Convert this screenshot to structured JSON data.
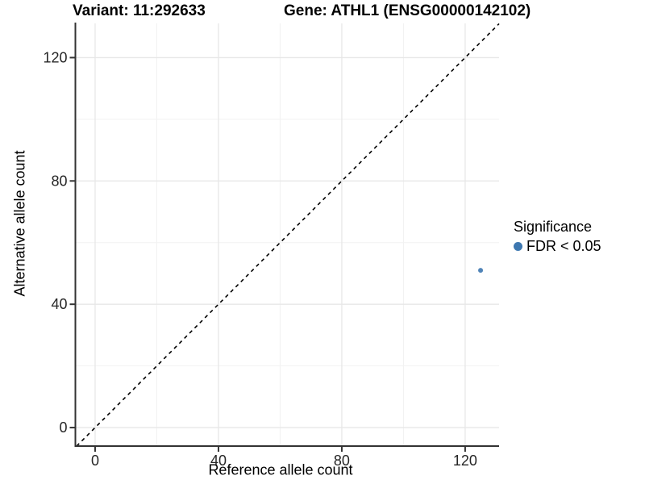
{
  "chart_data": {
    "type": "scatter",
    "titles": {
      "left": "Variant: 11:292633",
      "right": "Gene: ATHL1 (ENSG00000142102)"
    },
    "xlabel": "Reference allele count",
    "ylabel": "Alternative allele count",
    "xlim": [
      -6.4,
      131
    ],
    "ylim": [
      -6,
      131.1
    ],
    "x_major_ticks": [
      0,
      40,
      80,
      120
    ],
    "y_major_ticks": [
      0,
      40,
      80,
      120
    ],
    "x_minor_gridlines": [
      20,
      60,
      100
    ],
    "y_minor_gridlines": [
      20,
      60,
      100
    ],
    "grid": "major+minor",
    "background": "#ffffff",
    "axis_line_color": "#333333",
    "major_grid_color": "#e7e7e7",
    "minor_grid_color": "#f2f2f2",
    "reference_line": {
      "slope": 1,
      "intercept": 0,
      "style": "dashed",
      "color": "#000000"
    },
    "series": [
      {
        "name": "FDR < 0.05",
        "color": "#3d77b0",
        "points": [
          {
            "x": 125,
            "y": 51
          }
        ]
      }
    ],
    "legend": {
      "title": "Significance",
      "position": "right"
    }
  }
}
